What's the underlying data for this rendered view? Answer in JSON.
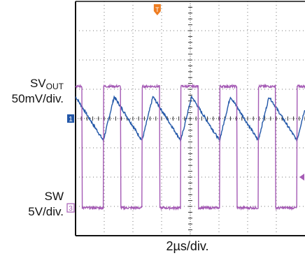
{
  "chart_data": {
    "type": "line",
    "xlabel": "2µs/div.",
    "x_divisions": 8,
    "y_divisions": 8,
    "grid": true,
    "trigger_marker": "T",
    "series": [
      {
        "name": "SVOUT",
        "channel": "1",
        "scale": "50mV/div.",
        "color": "#2257a8",
        "waveform": "triangle ripple",
        "period_div": 1.35,
        "amplitude_div": 0.75,
        "mean_div": 0.0
      },
      {
        "name": "SW",
        "channel": "3",
        "scale": "5V/div.",
        "color": "#a55bb5",
        "waveform": "square",
        "period_div": 1.35,
        "low_div": -3.05,
        "high_div": 1.1,
        "duty": 0.45
      }
    ],
    "labels": {
      "ch1_name": "SV",
      "ch1_sub": "OUT",
      "ch1_scale": "50mV/div.",
      "ch3_name": "SW",
      "ch3_scale": "5V/div.",
      "time_scale": "2µs/div.",
      "ch1_marker": "1",
      "ch3_marker": "3"
    }
  }
}
